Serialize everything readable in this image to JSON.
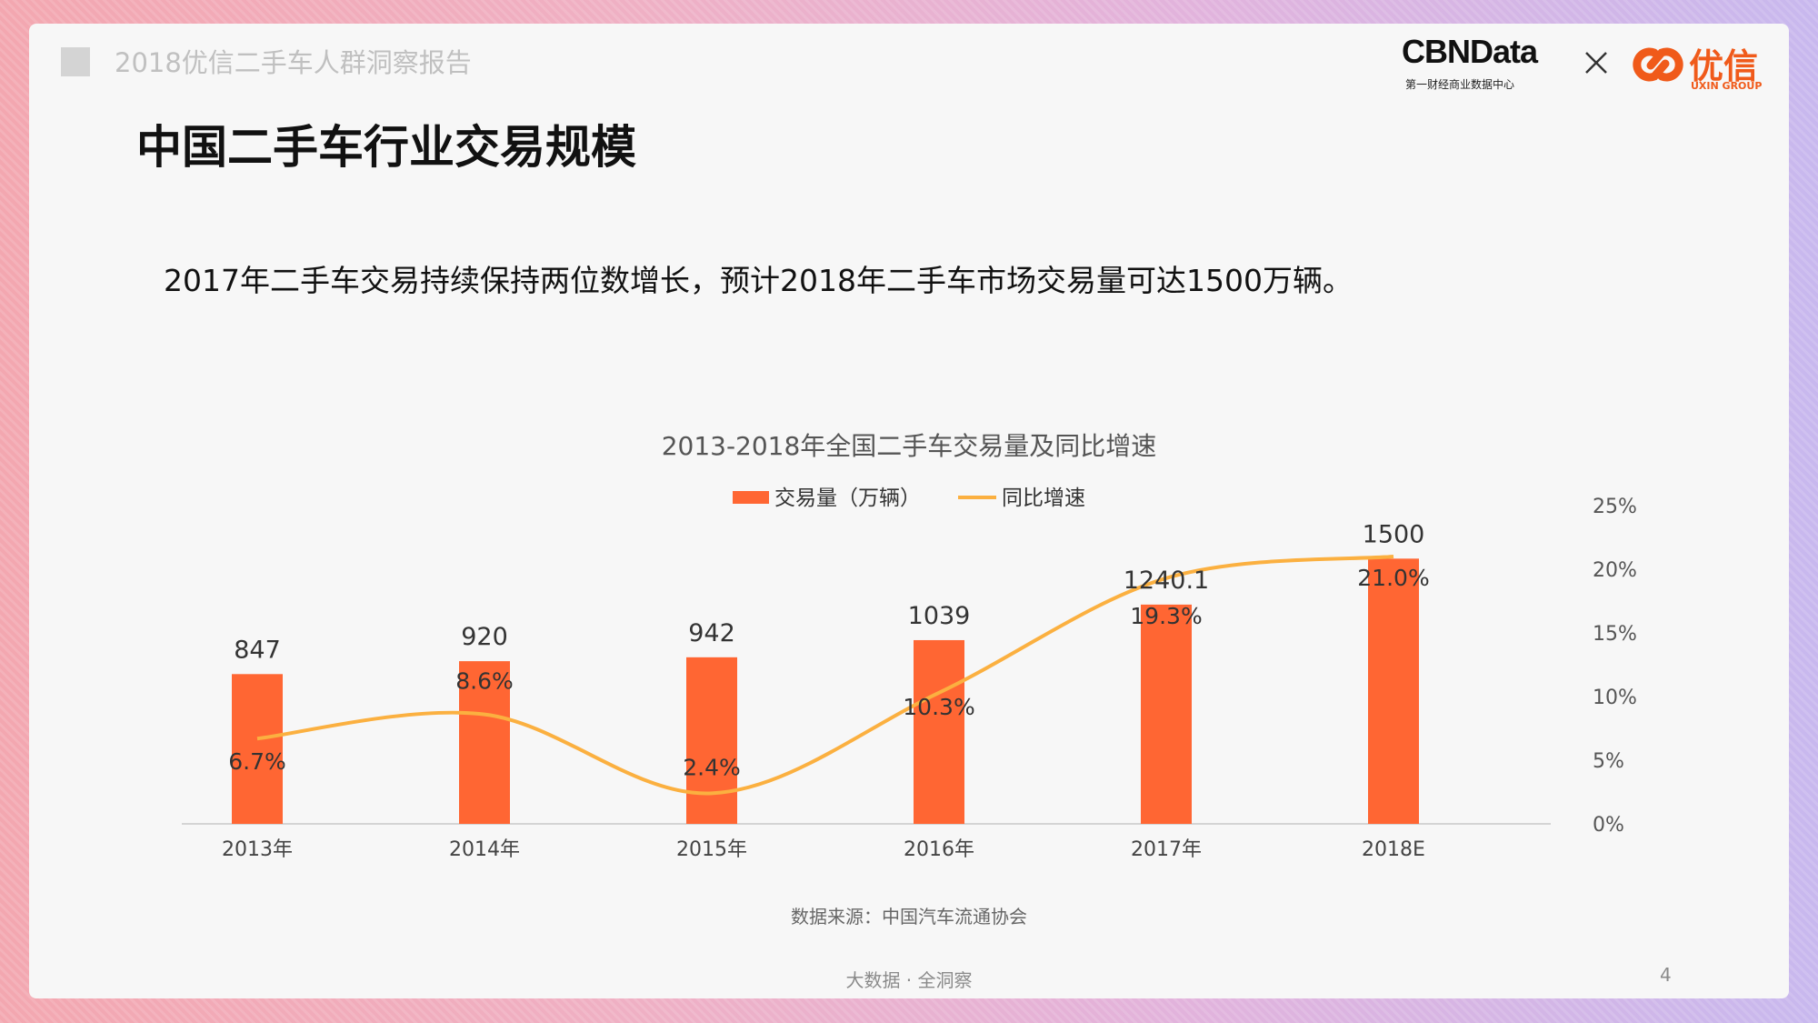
{
  "header": {
    "report_title": "2018优信二手车人群洞察报告"
  },
  "logos": {
    "cbn_name": "CBNData",
    "cbn_tagline": "第一财经商业数据中心",
    "uxin_name": "优信",
    "uxin_sub": "UXIN GROUP"
  },
  "page": {
    "title": "中国二手车行业交易规模",
    "summary": "2017年二手车交易持续保持两位数增长，预计2018年二手车市场交易量可达1500万辆。",
    "source": "数据来源：中国汽车流通协会",
    "footer": "大数据 · 全洞察",
    "page_number": "4"
  },
  "colors": {
    "bar": "#ff6633",
    "line": "#fbb040",
    "accent": "#f05a1a"
  },
  "chart_data": {
    "type": "bar",
    "title": "2013-2018年全国二手车交易量及同比增速",
    "categories": [
      "2013年",
      "2014年",
      "2015年",
      "2016年",
      "2017年",
      "2018E"
    ],
    "series": [
      {
        "name": "交易量（万辆）",
        "type": "bar",
        "axis": "left",
        "values": [
          847,
          920,
          942,
          1039,
          1240.1,
          1500
        ],
        "labels": [
          "847",
          "920",
          "942",
          "1039",
          "1240.1",
          "1500"
        ]
      },
      {
        "name": "同比增速",
        "type": "line",
        "axis": "right",
        "values": [
          6.7,
          8.6,
          2.4,
          10.3,
          19.3,
          21.0
        ],
        "labels": [
          "6.7%",
          "8.6%",
          "2.4%",
          "10.3%",
          "19.3%",
          "21.0%"
        ]
      }
    ],
    "y_left_range": [
      0,
      1800
    ],
    "y_right_range": [
      0,
      25
    ],
    "y_right_ticks": [
      "0%",
      "5%",
      "10%",
      "15%",
      "20%",
      "25%"
    ],
    "legend_position": "top-center"
  }
}
